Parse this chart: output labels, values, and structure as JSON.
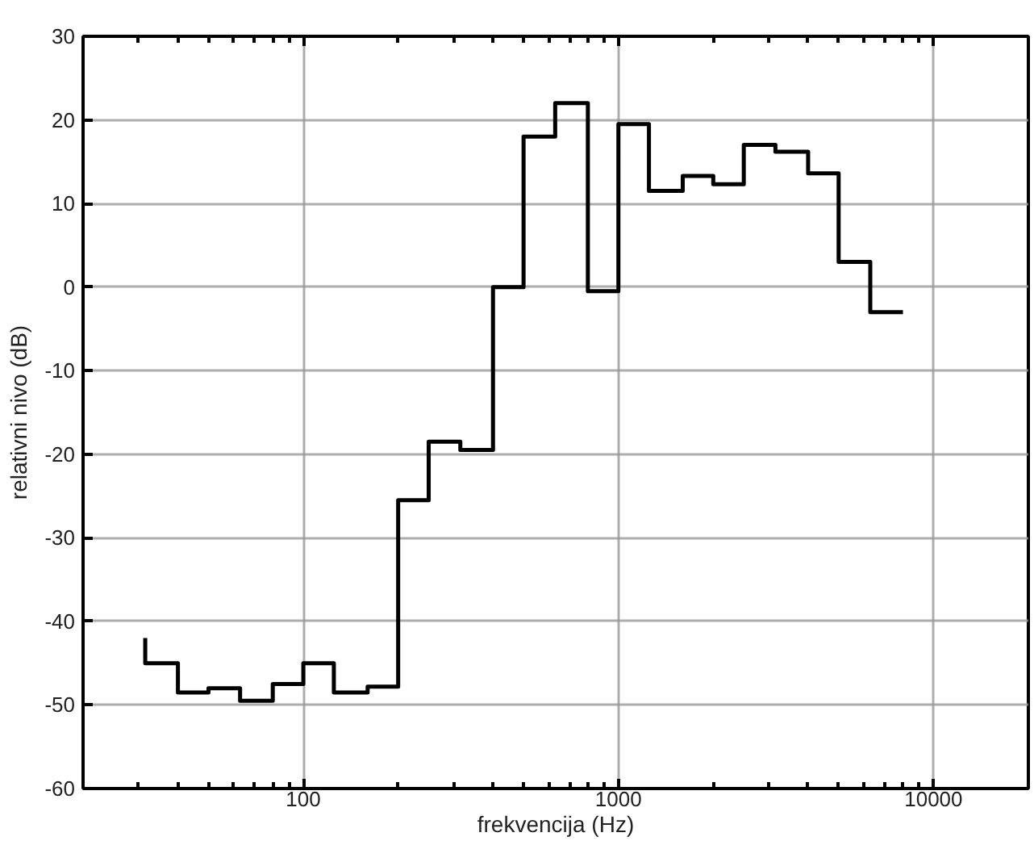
{
  "chart_data": {
    "type": "step",
    "xlabel": "frekvencija (Hz)",
    "ylabel": "relativni nivo (dB)",
    "log": "x",
    "grid": true,
    "marker": "none",
    "line_style": "solid",
    "x": [
      31.5,
      40,
      50,
      63,
      80,
      100,
      125,
      160,
      200,
      250,
      315,
      400,
      500,
      630,
      800,
      1000,
      1250,
      1600,
      2000,
      2500,
      3150,
      4000,
      5000,
      6300,
      8000
    ],
    "series": [
      {
        "color": "#000000",
        "values": [
          -42,
          -45,
          -48.5,
          -48,
          -49.5,
          -47.5,
          -45,
          -48.5,
          -47.8,
          -25.5,
          -18.5,
          -19.5,
          0,
          18,
          22,
          -0.5,
          19.5,
          11.5,
          13.3,
          12.3,
          17,
          16.2,
          13.6,
          3,
          -3
        ]
      }
    ],
    "xlim": [
      20,
      20000
    ],
    "xticks": [
      {
        "value": 30,
        "label": null
      },
      {
        "value": 40,
        "label": null
      },
      {
        "value": 50,
        "label": null
      },
      {
        "value": 60,
        "label": null
      },
      {
        "value": 70,
        "label": null
      },
      {
        "value": 80,
        "label": null
      },
      {
        "value": 90,
        "label": null
      },
      100,
      {
        "value": 200,
        "label": null
      },
      {
        "value": 300,
        "label": null
      },
      {
        "value": 400,
        "label": null
      },
      {
        "value": 500,
        "label": null
      },
      {
        "value": 600,
        "label": null
      },
      {
        "value": 700,
        "label": null
      },
      {
        "value": 800,
        "label": null
      },
      {
        "value": 900,
        "label": null
      },
      1000,
      {
        "value": 2000,
        "label": null
      },
      {
        "value": 3000,
        "label": null
      },
      {
        "value": 4000,
        "label": null
      },
      {
        "value": 5000,
        "label": null
      },
      {
        "value": 6000,
        "label": null
      },
      {
        "value": 7000,
        "label": null
      },
      {
        "value": 8000,
        "label": null
      },
      {
        "value": 9000,
        "label": null
      },
      10000
    ],
    "ylim": [
      -60,
      30
    ],
    "yticks": [
      -60,
      -50,
      -40,
      -30,
      -20,
      -10,
      0,
      10,
      20,
      30
    ]
  }
}
